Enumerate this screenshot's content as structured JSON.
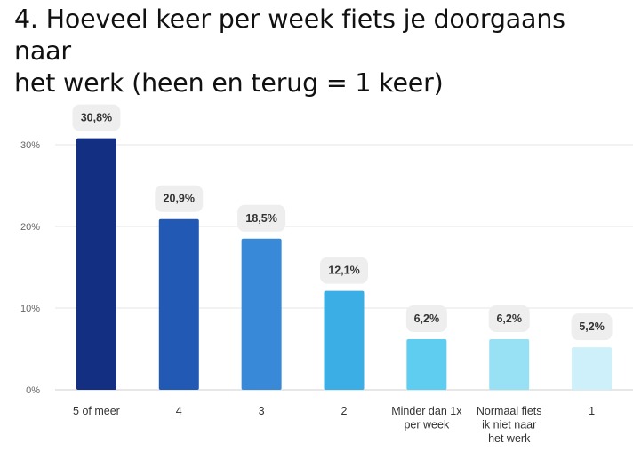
{
  "title": "4. Hoeveel keer per week fiets je doorgaans naar\nhet werk (heen en terug = 1 keer)",
  "chart_data": {
    "type": "bar",
    "categories": [
      "5 of meer",
      "4",
      "3",
      "2",
      "Minder dan 1x per week",
      "Normaal fiets ik niet naar het werk",
      "1"
    ],
    "category_lines": [
      [
        "5 of meer"
      ],
      [
        "4"
      ],
      [
        "3"
      ],
      [
        "2"
      ],
      [
        "Minder dan 1x",
        "per week"
      ],
      [
        "Normaal fiets",
        "ik niet naar",
        "het werk"
      ],
      [
        "1"
      ]
    ],
    "values": [
      30.8,
      20.9,
      18.5,
      12.1,
      6.2,
      6.2,
      5.2
    ],
    "value_labels": [
      "30,8%",
      "20,9%",
      "18,5%",
      "12,1%",
      "6,2%",
      "6,2%",
      "5,2%"
    ],
    "colors": [
      "#132f82",
      "#2159b4",
      "#388ad8",
      "#3caee6",
      "#5ecdf0",
      "#98e1f5",
      "#cdf0fb"
    ],
    "yticks": [
      0,
      10,
      20,
      30
    ],
    "ytick_labels": [
      "0%",
      "10%",
      "20%",
      "30%"
    ],
    "ylim": [
      0,
      30
    ],
    "grid": true,
    "title": "4. Hoeveel keer per week fiets je doorgaans naar het werk (heen en terug = 1 keer)"
  }
}
